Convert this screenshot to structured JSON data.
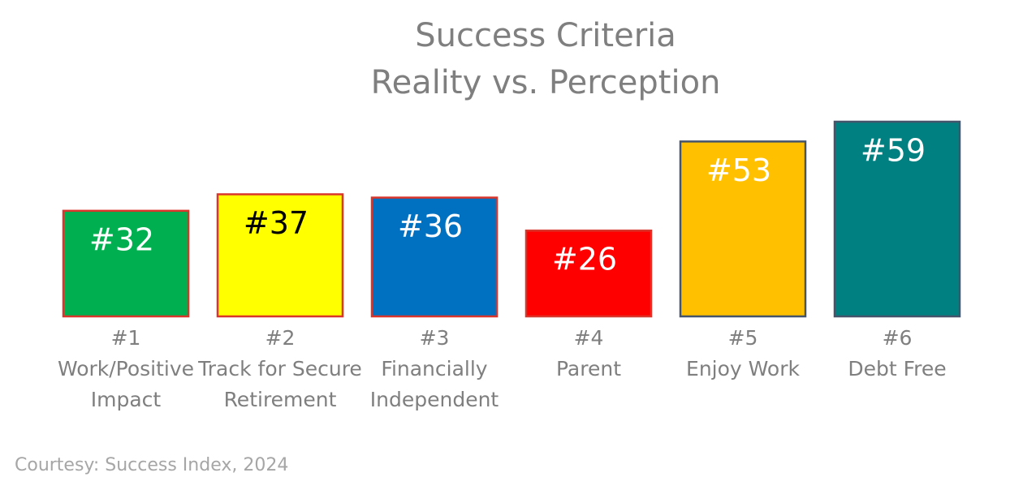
{
  "chart_data": {
    "type": "bar",
    "title": "Success Criteria",
    "subtitle": "Reality vs. Perception",
    "ranks": [
      "#1",
      "#2",
      "#3",
      "#4",
      "#5",
      "#6"
    ],
    "categories": [
      "Work/Positive Impact",
      "Track for Secure Retirement",
      "Financially Independent",
      "Parent",
      "Enjoy Work",
      "Debt Free"
    ],
    "values": [
      32,
      37,
      36,
      26,
      53,
      59
    ],
    "value_labels": [
      "#32",
      "#37",
      "#36",
      "#26",
      "#53",
      "#59"
    ],
    "colors": [
      "#00b050",
      "#ffff00",
      "#0070c0",
      "#ff0000",
      "#ffc000",
      "#008080"
    ],
    "border_colors": [
      "#d9352b",
      "#d9352b",
      "#d9352b",
      "#d9352b",
      "#44546a",
      "#44546a"
    ],
    "value_label_colors": [
      "#ffffff",
      "#000000",
      "#ffffff",
      "#ffffff",
      "#ffffff",
      "#ffffff"
    ],
    "source": "Courtesy: Success Index, 2024"
  }
}
